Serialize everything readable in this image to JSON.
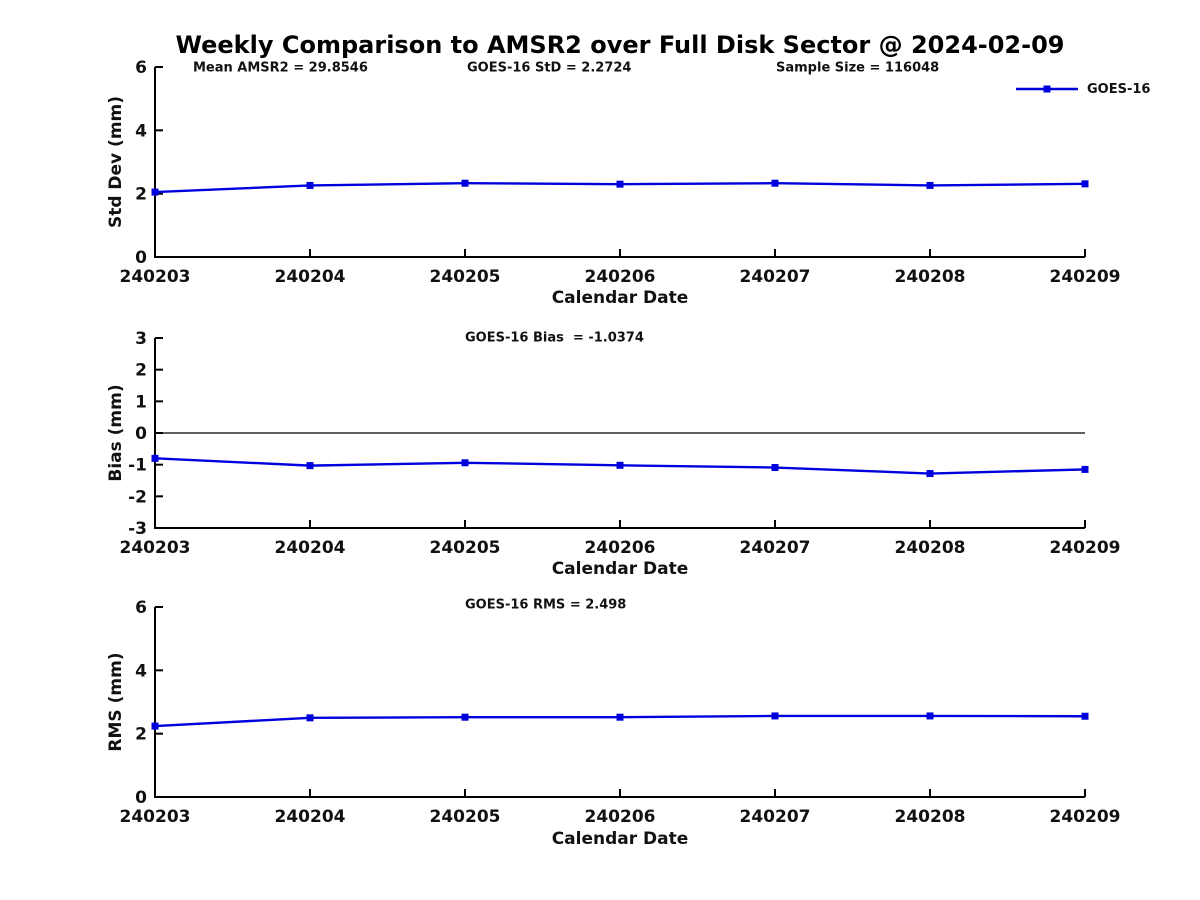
{
  "figure": {
    "title": "Weekly Comparison to AMSR2 over Full Disk Sector @ 2024-02-09",
    "annotations": {
      "mean_amsr2": "Mean AMSR2 = 29.8546",
      "goes16_std": "GOES-16 StD = 2.2724",
      "sample_size": "Sample Size = 116048",
      "goes16_bias": "GOES-16 Bias  = -1.0374",
      "goes16_rms": "GOES-16 RMS = 2.498"
    },
    "legend": {
      "label": "GOES-16",
      "series_color": "#0000dd",
      "position": "top-right"
    }
  },
  "chart_data": [
    {
      "type": "line",
      "title": "",
      "xlabel": "Calendar Date",
      "ylabel": "Std Dev (mm)",
      "categories": [
        "240203",
        "240204",
        "240205",
        "240206",
        "240207",
        "240208",
        "240209"
      ],
      "series": [
        {
          "name": "GOES-16",
          "color": "#0000dd",
          "marker": "square",
          "values": [
            2.05,
            2.26,
            2.33,
            2.3,
            2.33,
            2.26,
            2.31
          ]
        }
      ],
      "ylim": [
        0,
        6
      ],
      "yticks": [
        0,
        2,
        4,
        6
      ],
      "zero_line": false,
      "grid": false,
      "legend_position": "top-right"
    },
    {
      "type": "line",
      "title": "",
      "xlabel": "Calendar Date",
      "ylabel": "Bias (mm)",
      "categories": [
        "240203",
        "240204",
        "240205",
        "240206",
        "240207",
        "240208",
        "240209"
      ],
      "series": [
        {
          "name": "GOES-16",
          "color": "#0000dd",
          "marker": "square",
          "values": [
            -0.8,
            -1.03,
            -0.94,
            -1.02,
            -1.09,
            -1.28,
            -1.15
          ]
        }
      ],
      "ylim": [
        -3,
        3
      ],
      "yticks": [
        -3,
        -2,
        -1,
        0,
        1,
        2,
        3
      ],
      "zero_line": true,
      "grid": false
    },
    {
      "type": "line",
      "title": "",
      "xlabel": "Calendar Date",
      "ylabel": "RMS (mm)",
      "categories": [
        "240203",
        "240204",
        "240205",
        "240206",
        "240207",
        "240208",
        "240209"
      ],
      "series": [
        {
          "name": "GOES-16",
          "color": "#0000dd",
          "marker": "square",
          "values": [
            2.24,
            2.5,
            2.52,
            2.52,
            2.56,
            2.56,
            2.55
          ]
        }
      ],
      "ylim": [
        0,
        6
      ],
      "yticks": [
        0,
        2,
        4,
        6
      ],
      "zero_line": false,
      "grid": false
    }
  ]
}
